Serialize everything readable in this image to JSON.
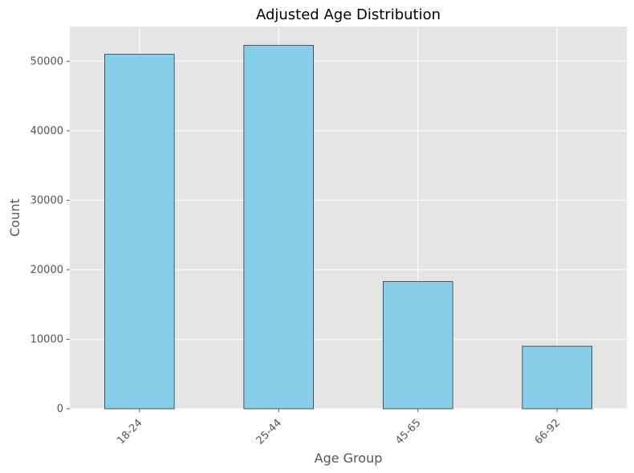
{
  "chart_data": {
    "type": "bar",
    "title": "Adjusted Age Distribution",
    "xlabel": "Age Group",
    "ylabel": "Count",
    "categories": [
      "18-24",
      "25-44",
      "45-65",
      "66-92"
    ],
    "values": [
      51000,
      52300,
      18300,
      9000
    ],
    "ylim": [
      0,
      55000
    ],
    "yticks": [
      0,
      10000,
      20000,
      30000,
      40000,
      50000
    ],
    "grid": true,
    "legend": "none",
    "x_tick_rotation_deg": 45,
    "colors": {
      "bar_fill": "#87ceeb",
      "bar_edge": "#333333",
      "plot_background": "#e5e5e5",
      "grid": "#ffffff",
      "text": "#555555",
      "title": "#000000"
    }
  }
}
